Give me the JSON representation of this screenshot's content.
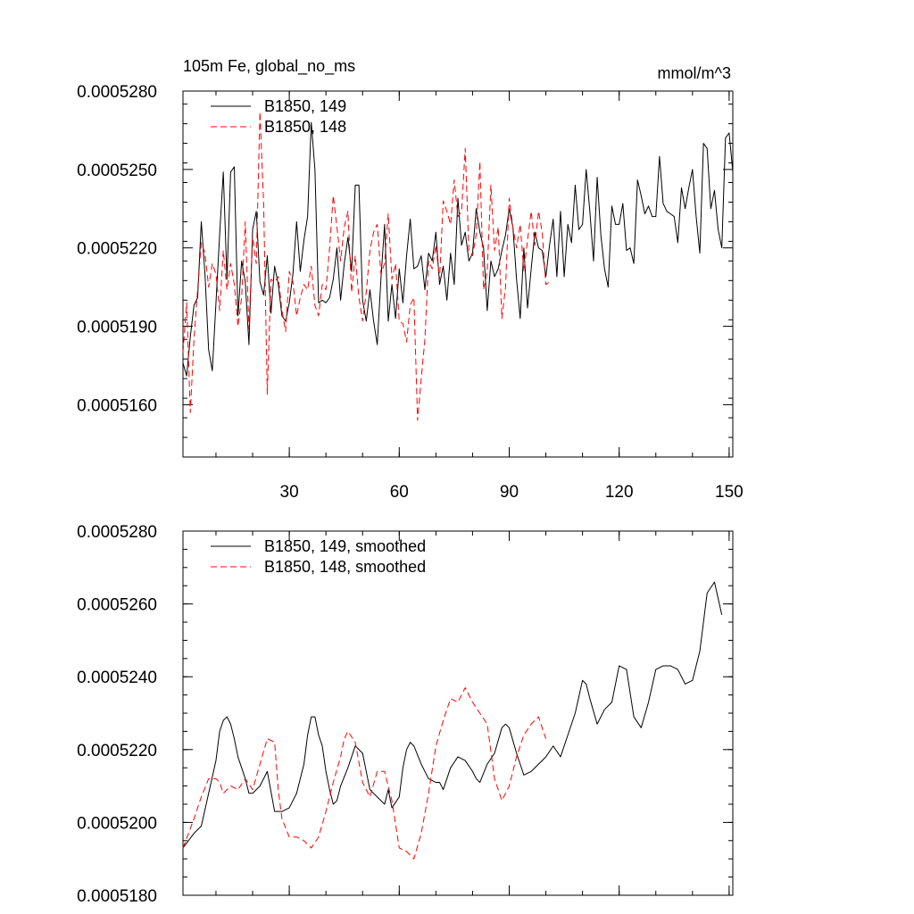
{
  "chart_data": [
    {
      "type": "line",
      "title": "105m Fe, global_no_ms",
      "units": "mmol/m^3",
      "xlabel": "",
      "ylabel": "",
      "xlim": [
        1,
        151
      ],
      "ylim": [
        0.000514,
        0.000528
      ],
      "xticks": [
        30,
        60,
        90,
        120,
        150
      ],
      "xtick_labels": [
        "30",
        "60",
        "90",
        "120",
        "150"
      ],
      "yticks": [
        0.000516,
        0.000519,
        0.000522,
        0.000525,
        0.000528
      ],
      "ytick_labels": [
        "0.0005160",
        "0.0005190",
        "0.0005220",
        "0.0005250",
        "0.0005280"
      ],
      "legend_position": "top-left",
      "series": [
        {
          "name": "B1850, 149",
          "color": "#000000",
          "dash": "solid",
          "x": [
            1,
            2,
            3,
            4,
            5,
            6,
            7,
            8,
            9,
            10,
            11,
            12,
            13,
            14,
            15,
            16,
            17,
            18,
            19,
            20,
            21,
            22,
            23,
            24,
            25,
            26,
            27,
            28,
            29,
            30,
            31,
            32,
            33,
            34,
            35,
            36,
            37,
            38,
            39,
            40,
            41,
            42,
            43,
            44,
            45,
            46,
            47,
            48,
            49,
            50,
            51,
            52,
            53,
            54,
            55,
            56,
            57,
            58,
            59,
            60,
            61,
            62,
            63,
            64,
            65,
            66,
            67,
            68,
            69,
            70,
            71,
            72,
            73,
            74,
            75,
            76,
            77,
            78,
            79,
            80,
            81,
            82,
            83,
            84,
            85,
            86,
            87,
            88,
            89,
            90,
            91,
            92,
            93,
            94,
            95,
            96,
            97,
            98,
            99,
            100,
            101,
            102,
            103,
            104,
            105,
            106,
            107,
            108,
            109,
            110,
            111,
            112,
            113,
            114,
            115,
            116,
            117,
            118,
            119,
            120,
            121,
            122,
            123,
            124,
            125,
            126,
            127,
            128,
            129,
            130,
            131,
            132,
            133,
            134,
            135,
            136,
            137,
            138,
            139,
            140,
            141,
            142,
            143,
            144,
            145,
            146,
            147,
            148,
            149,
            150,
            151
          ],
          "values": [
            0.0005176,
            0.0005171,
            0.0005186,
            0.0005198,
            0.0005201,
            0.000523,
            0.000521,
            0.0005181,
            0.0005173,
            0.0005199,
            0.0005225,
            0.0005249,
            0.0005208,
            0.0005249,
            0.0005251,
            0.0005194,
            0.0005215,
            0.0005207,
            0.0005183,
            0.0005227,
            0.0005234,
            0.0005207,
            0.0005202,
            0.0005217,
            0.0005195,
            0.0005213,
            0.0005206,
            0.0005194,
            0.0005192,
            0.0005199,
            0.000521,
            0.000523,
            0.0005211,
            0.0005223,
            0.0005232,
            0.0005268,
            0.000525,
            0.0005199,
            0.00052,
            0.0005199,
            0.0005201,
            0.0005208,
            0.000522,
            0.00052,
            0.0005214,
            0.0005224,
            0.0005211,
            0.0005244,
            0.0005244,
            0.00052,
            0.0005192,
            0.0005204,
            0.0005192,
            0.0005183,
            0.0005208,
            0.0005229,
            0.0005192,
            0.0005206,
            0.0005193,
            0.0005212,
            0.0005199,
            0.0005217,
            0.0005231,
            0.0005212,
            0.0005213,
            0.0005217,
            0.0005204,
            0.0005218,
            0.0005215,
            0.0005226,
            0.0005206,
            0.0005213,
            0.00052,
            0.0005218,
            0.0005206,
            0.0005239,
            0.0005221,
            0.0005226,
            0.0005215,
            0.0005218,
            0.0005235,
            0.0005226,
            0.000522,
            0.0005196,
            0.0005215,
            0.0005209,
            0.0005212,
            0.0005219,
            0.0005225,
            0.0005235,
            0.0005228,
            0.0005208,
            0.0005193,
            0.000522,
            0.0005197,
            0.0005212,
            0.0005226,
            0.000522,
            0.0005219,
            0.0005209,
            0.0005221,
            0.0005231,
            0.0005209,
            0.0005234,
            0.0005209,
            0.0005229,
            0.0005222,
            0.0005244,
            0.0005227,
            0.0005229,
            0.000525,
            0.0005234,
            0.0005215,
            0.0005247,
            0.0005225,
            0.0005212,
            0.0005205,
            0.0005236,
            0.0005229,
            0.0005229,
            0.0005237,
            0.0005219,
            0.000522,
            0.0005214,
            0.0005246,
            0.000524,
            0.0005233,
            0.0005236,
            0.0005232,
            0.0005232,
            0.0005255,
            0.0005237,
            0.0005234,
            0.0005233,
            0.0005232,
            0.0005222,
            0.0005243,
            0.0005235,
            0.0005243,
            0.000525,
            0.0005232,
            0.0005218,
            0.000526,
            0.0005258,
            0.0005235,
            0.0005242,
            0.0005227,
            0.000522,
            0.0005262,
            0.0005264,
            0.0005249
          ]
        },
        {
          "name": "B1850, 148",
          "color": "#ff0000",
          "dash": "dashed",
          "x": [
            1,
            2,
            3,
            4,
            5,
            6,
            7,
            8,
            9,
            10,
            11,
            12,
            13,
            14,
            15,
            16,
            17,
            18,
            19,
            20,
            21,
            22,
            23,
            24,
            25,
            26,
            27,
            28,
            29,
            30,
            31,
            32,
            33,
            34,
            35,
            36,
            37,
            38,
            39,
            40,
            41,
            42,
            43,
            44,
            45,
            46,
            47,
            48,
            49,
            50,
            51,
            52,
            53,
            54,
            55,
            56,
            57,
            58,
            59,
            60,
            61,
            62,
            63,
            64,
            65,
            66,
            67,
            68,
            69,
            70,
            71,
            72,
            73,
            74,
            75,
            76,
            77,
            78,
            79,
            80,
            81,
            82,
            83,
            84,
            85,
            86,
            87,
            88,
            89,
            90,
            91,
            92,
            93,
            94,
            95,
            96,
            97,
            98,
            99,
            100,
            101
          ],
          "values": [
            0.000518,
            0.0005199,
            0.0005157,
            0.0005185,
            0.0005204,
            0.0005222,
            0.0005218,
            0.0005205,
            0.0005214,
            0.000521,
            0.0005196,
            0.0005219,
            0.0005204,
            0.0005214,
            0.0005206,
            0.000519,
            0.0005201,
            0.000523,
            0.0005189,
            0.0005224,
            0.0005214,
            0.0005272,
            0.0005237,
            0.0005164,
            0.0005208,
            0.0005207,
            0.0005209,
            0.0005196,
            0.0005188,
            0.0005211,
            0.0005207,
            0.0005194,
            0.0005201,
            0.0005206,
            0.0005204,
            0.0005213,
            0.0005198,
            0.0005194,
            0.0005206,
            0.0005204,
            0.000522,
            0.000524,
            0.0005228,
            0.0005215,
            0.0005228,
            0.0005234,
            0.0005203,
            0.0005217,
            0.0005201,
            0.0005192,
            0.0005203,
            0.0005219,
            0.0005226,
            0.0005229,
            0.000521,
            0.0005214,
            0.0005233,
            0.0005208,
            0.0005214,
            0.0005192,
            0.0005191,
            0.0005184,
            0.0005198,
            0.0005201,
            0.0005154,
            0.000517,
            0.0005185,
            0.0005215,
            0.0005212,
            0.0005221,
            0.0005208,
            0.0005238,
            0.0005234,
            0.0005229,
            0.0005246,
            0.0005232,
            0.0005234,
            0.0005258,
            0.0005219,
            0.0005217,
            0.0005225,
            0.0005253,
            0.0005204,
            0.0005211,
            0.0005244,
            0.0005219,
            0.0005228,
            0.0005193,
            0.0005205,
            0.0005239,
            0.0005228,
            0.000522,
            0.0005229,
            0.0005211,
            0.0005223,
            0.0005234,
            0.0005221,
            0.0005234,
            0.0005226,
            0.0005206,
            0.0005207
          ]
        }
      ]
    },
    {
      "type": "line",
      "title": "",
      "xlabel": "",
      "ylabel": "",
      "xlim": [
        1,
        151
      ],
      "ylim": [
        0.000518,
        0.000528
      ],
      "xticks": [
        30,
        60,
        90,
        120,
        150
      ],
      "xtick_labels": [],
      "yticks": [
        0.000518,
        0.00052,
        0.000522,
        0.000524,
        0.000526,
        0.000528
      ],
      "ytick_labels": [
        "0.0005180",
        "0.0005200",
        "0.0005220",
        "0.0005240",
        "0.0005260",
        "0.0005280"
      ],
      "legend_position": "top-left",
      "series": [
        {
          "name": "B1850, 149, smoothed",
          "color": "#000000",
          "dash": "solid",
          "x": [
            1,
            4,
            6,
            8,
            10,
            11,
            12,
            13,
            14,
            15,
            16,
            17,
            18,
            19,
            20,
            22,
            24,
            26,
            28,
            30,
            32,
            34,
            35,
            36,
            37,
            38,
            39,
            40,
            41,
            42,
            43,
            44,
            46,
            48,
            50,
            52,
            54,
            56,
            57,
            58,
            60,
            61,
            62,
            63,
            64,
            66,
            68,
            70,
            71,
            72,
            74,
            76,
            78,
            80,
            81,
            82,
            84,
            86,
            88,
            89,
            90,
            92,
            94,
            96,
            98,
            100,
            102,
            104,
            106,
            108,
            110,
            111,
            112,
            114,
            116,
            118,
            120,
            122,
            124,
            126,
            128,
            130,
            132,
            134,
            136,
            138,
            140,
            142,
            144,
            146,
            148
          ],
          "values": [
            0.0005193,
            0.0005197,
            0.0005199,
            0.0005208,
            0.0005217,
            0.0005225,
            0.0005228,
            0.0005229,
            0.0005227,
            0.0005223,
            0.0005218,
            0.0005215,
            0.0005212,
            0.0005208,
            0.0005208,
            0.000521,
            0.0005214,
            0.0005203,
            0.0005203,
            0.0005204,
            0.0005208,
            0.0005216,
            0.0005224,
            0.0005229,
            0.0005229,
            0.0005224,
            0.0005221,
            0.0005214,
            0.0005209,
            0.0005205,
            0.0005206,
            0.000521,
            0.0005215,
            0.0005221,
            0.0005219,
            0.0005209,
            0.0005207,
            0.0005205,
            0.0005209,
            0.0005204,
            0.0005207,
            0.0005215,
            0.000522,
            0.0005222,
            0.0005221,
            0.0005216,
            0.0005212,
            0.0005211,
            0.0005211,
            0.0005209,
            0.0005215,
            0.0005218,
            0.0005217,
            0.0005214,
            0.0005212,
            0.0005211,
            0.0005216,
            0.0005219,
            0.0005226,
            0.0005227,
            0.0005226,
            0.0005219,
            0.0005213,
            0.0005214,
            0.0005216,
            0.0005218,
            0.0005221,
            0.0005218,
            0.0005224,
            0.000523,
            0.0005239,
            0.0005238,
            0.0005234,
            0.0005227,
            0.0005231,
            0.0005233,
            0.0005243,
            0.0005242,
            0.0005229,
            0.0005226,
            0.0005233,
            0.0005242,
            0.0005243,
            0.0005243,
            0.0005242,
            0.0005238,
            0.0005239,
            0.0005247,
            0.0005263,
            0.0005266,
            0.0005257
          ]
        },
        {
          "name": "B1850, 148, smoothed",
          "color": "#ff0000",
          "dash": "dashed",
          "x": [
            1,
            4,
            6,
            8,
            10,
            11,
            12,
            14,
            16,
            18,
            20,
            22,
            24,
            26,
            27,
            28,
            30,
            32,
            34,
            36,
            38,
            40,
            42,
            44,
            45,
            46,
            48,
            50,
            52,
            54,
            56,
            58,
            60,
            62,
            64,
            66,
            68,
            70,
            72,
            74,
            76,
            78,
            80,
            82,
            84,
            86,
            88,
            90,
            92,
            94,
            96,
            98,
            100
          ],
          "values": [
            0.0005193,
            0.0005201,
            0.0005207,
            0.0005212,
            0.0005212,
            0.0005211,
            0.0005208,
            0.000521,
            0.0005209,
            0.0005212,
            0.0005209,
            0.0005216,
            0.0005223,
            0.0005222,
            0.0005209,
            0.0005201,
            0.0005196,
            0.0005196,
            0.0005195,
            0.0005193,
            0.0005196,
            0.0005203,
            0.0005211,
            0.0005218,
            0.0005223,
            0.0005225,
            0.0005222,
            0.0005211,
            0.0005207,
            0.0005214,
            0.0005214,
            0.0005206,
            0.0005193,
            0.0005192,
            0.000519,
            0.0005197,
            0.0005208,
            0.0005221,
            0.0005228,
            0.0005234,
            0.0005233,
            0.0005237,
            0.0005233,
            0.000523,
            0.0005227,
            0.0005212,
            0.0005206,
            0.000521,
            0.0005218,
            0.0005224,
            0.0005227,
            0.0005229,
            0.0005223
          ]
        }
      ]
    }
  ]
}
